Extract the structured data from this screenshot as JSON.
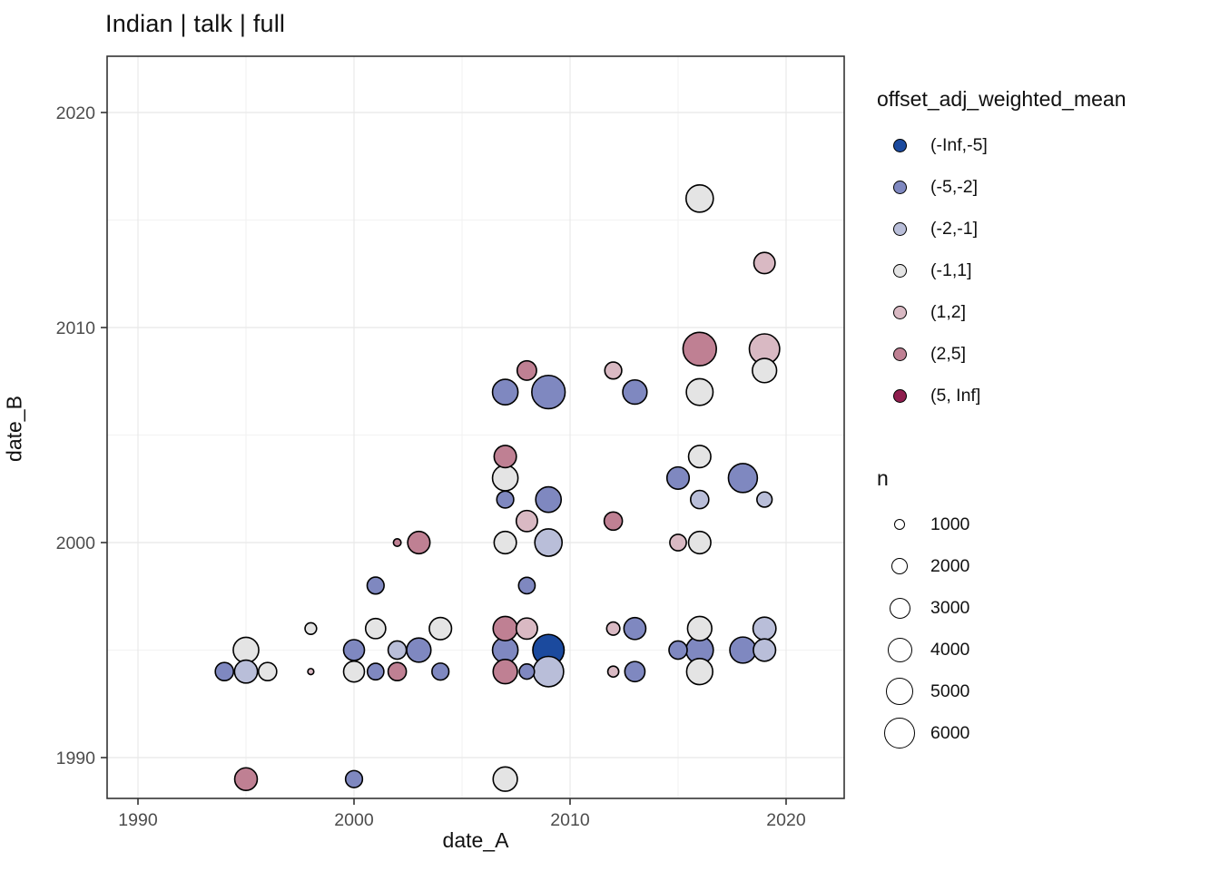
{
  "title": "Indian | talk | full",
  "axes": {
    "x": {
      "label": "date_A",
      "ticks": [
        1990,
        2000,
        2010,
        2020
      ],
      "minor": [
        1995,
        2005,
        2015
      ],
      "range": [
        1988.6,
        2022.7
      ]
    },
    "y": {
      "label": "date_B",
      "ticks": [
        1990,
        2000,
        2010,
        2020
      ],
      "minor": [
        1995,
        2005,
        2015
      ],
      "range": [
        1988.1,
        2022.6
      ]
    }
  },
  "legend_color": {
    "title": "offset_adj_weighted_mean",
    "items": [
      {
        "label": "(-Inf,-5]",
        "color": "#1b4a9e"
      },
      {
        "label": "(-5,-2]",
        "color": "#7f88c0"
      },
      {
        "label": "(-2,-1]",
        "color": "#b9bed9"
      },
      {
        "label": "(-1,1]",
        "color": "#e4e4e4"
      },
      {
        "label": "(1,2]",
        "color": "#d9b9c3"
      },
      {
        "label": "(2,5]",
        "color": "#bf8093"
      },
      {
        "label": "(5, Inf]",
        "color": "#8f1e4e"
      }
    ]
  },
  "legend_size": {
    "title": "n",
    "items": [
      {
        "label": "1000",
        "n": 1000
      },
      {
        "label": "2000",
        "n": 2000
      },
      {
        "label": "3000",
        "n": 3000
      },
      {
        "label": "4000",
        "n": 4000
      },
      {
        "label": "5000",
        "n": 5000
      },
      {
        "label": "6000",
        "n": 6000
      }
    ]
  },
  "chart_data": {
    "type": "scatter",
    "title": "Indian | talk | full",
    "xlabel": "date_A",
    "ylabel": "date_B",
    "xlim": [
      1988.6,
      2022.7
    ],
    "ylim": [
      1988.1,
      2022.6
    ],
    "grid": "on",
    "legend_position": "right",
    "color_variable": "offset_adj_weighted_mean",
    "size_variable": "n",
    "size_scale": {
      "n_ref": [
        1000,
        6000
      ],
      "radius_px_ref": [
        5,
        15.8
      ]
    },
    "points": [
      {
        "date_A": 1994,
        "date_B": 1994,
        "bin": "(-5,-2]",
        "n": 2800
      },
      {
        "date_A": 1995,
        "date_B": 1995,
        "bin": "(-1,1]",
        "n": 4900
      },
      {
        "date_A": 1995,
        "date_B": 1994,
        "bin": "(-2,-1]",
        "n": 4100
      },
      {
        "date_A": 1996,
        "date_B": 1994,
        "bin": "(-1,1]",
        "n": 2800
      },
      {
        "date_A": 1998,
        "date_B": 1996,
        "bin": "(-1,1]",
        "n": 1400
      },
      {
        "date_A": 1998,
        "date_B": 1994,
        "bin": "(1,2]",
        "n": 600
      },
      {
        "date_A": 1995,
        "date_B": 1989,
        "bin": "(2,5]",
        "n": 4000
      },
      {
        "date_A": 2000,
        "date_B": 1989,
        "bin": "(-5,-2]",
        "n": 2500
      },
      {
        "date_A": 2000,
        "date_B": 1995,
        "bin": "(-5,-2]",
        "n": 3500
      },
      {
        "date_A": 2000,
        "date_B": 1994,
        "bin": "(-1,1]",
        "n": 3500
      },
      {
        "date_A": 2001,
        "date_B": 1998,
        "bin": "(-5,-2]",
        "n": 2500
      },
      {
        "date_A": 2001,
        "date_B": 1996,
        "bin": "(-1,1]",
        "n": 3300
      },
      {
        "date_A": 2001,
        "date_B": 1994,
        "bin": "(-5,-2]",
        "n": 2400
      },
      {
        "date_A": 2002,
        "date_B": 2000,
        "bin": "(2,5]",
        "n": 800
      },
      {
        "date_A": 2002,
        "date_B": 1995,
        "bin": "(-2,-1]",
        "n": 2800
      },
      {
        "date_A": 2002,
        "date_B": 1994,
        "bin": "(2,5]",
        "n": 2800
      },
      {
        "date_A": 2003,
        "date_B": 2000,
        "bin": "(2,5]",
        "n": 3900
      },
      {
        "date_A": 2003,
        "date_B": 1995,
        "bin": "(-5,-2]",
        "n": 4500
      },
      {
        "date_A": 2004,
        "date_B": 1996,
        "bin": "(-1,1]",
        "n": 3900
      },
      {
        "date_A": 2004,
        "date_B": 1994,
        "bin": "(-5,-2]",
        "n": 2500
      },
      {
        "date_A": 2007,
        "date_B": 2007,
        "bin": "(-5,-2]",
        "n": 4900
      },
      {
        "date_A": 2008,
        "date_B": 2008,
        "bin": "(2,5]",
        "n": 3100
      },
      {
        "date_A": 2009,
        "date_B": 2007,
        "bin": "(-5,-2]",
        "n": 7800
      },
      {
        "date_A": 2007,
        "date_B": 2004,
        "bin": "(2,5]",
        "n": 3900
      },
      {
        "date_A": 2007,
        "date_B": 2003,
        "bin": "(-1,1]",
        "n": 4900
      },
      {
        "date_A": 2007,
        "date_B": 2002,
        "bin": "(-5,-2]",
        "n": 2500
      },
      {
        "date_A": 2009,
        "date_B": 2002,
        "bin": "(-5,-2]",
        "n": 4900
      },
      {
        "date_A": 2008,
        "date_B": 2001,
        "bin": "(1,2]",
        "n": 3600
      },
      {
        "date_A": 2007,
        "date_B": 2000,
        "bin": "(-1,1]",
        "n": 3900
      },
      {
        "date_A": 2009,
        "date_B": 2000,
        "bin": "(-2,-1]",
        "n": 5500
      },
      {
        "date_A": 2008,
        "date_B": 1998,
        "bin": "(-5,-2]",
        "n": 2400
      },
      {
        "date_A": 2007,
        "date_B": 1996,
        "bin": "(2,5]",
        "n": 4500
      },
      {
        "date_A": 2008,
        "date_B": 1996,
        "bin": "(1,2]",
        "n": 3600
      },
      {
        "date_A": 2007,
        "date_B": 1995,
        "bin": "(-5,-2]",
        "n": 4900
      },
      {
        "date_A": 2009,
        "date_B": 1995,
        "bin": "(-Inf,-5]",
        "n": 7000
      },
      {
        "date_A": 2007,
        "date_B": 1994,
        "bin": "(2,5]",
        "n": 4500
      },
      {
        "date_A": 2008,
        "date_B": 1994,
        "bin": "(-5,-2]",
        "n": 2100
      },
      {
        "date_A": 2009,
        "date_B": 1994,
        "bin": "(-2,-1]",
        "n": 6600
      },
      {
        "date_A": 2007,
        "date_B": 1989,
        "bin": "(-1,1]",
        "n": 4500
      },
      {
        "date_A": 2012,
        "date_B": 2008,
        "bin": "(1,2]",
        "n": 2500
      },
      {
        "date_A": 2013,
        "date_B": 2007,
        "bin": "(-5,-2]",
        "n": 4500
      },
      {
        "date_A": 2012,
        "date_B": 2001,
        "bin": "(2,5]",
        "n": 2800
      },
      {
        "date_A": 2012,
        "date_B": 1996,
        "bin": "(1,2]",
        "n": 1700
      },
      {
        "date_A": 2013,
        "date_B": 1996,
        "bin": "(-5,-2]",
        "n": 3800
      },
      {
        "date_A": 2012,
        "date_B": 1994,
        "bin": "(1,2]",
        "n": 1300
      },
      {
        "date_A": 2013,
        "date_B": 1994,
        "bin": "(-5,-2]",
        "n": 3300
      },
      {
        "date_A": 2016,
        "date_B": 2016,
        "bin": "(-1,1]",
        "n": 5500
      },
      {
        "date_A": 2019,
        "date_B": 2013,
        "bin": "(1,2]",
        "n": 3600
      },
      {
        "date_A": 2016,
        "date_B": 2009,
        "bin": "(2,5]",
        "n": 7800
      },
      {
        "date_A": 2019,
        "date_B": 2009,
        "bin": "(1,2]",
        "n": 6600
      },
      {
        "date_A": 2019,
        "date_B": 2008,
        "bin": "(-1,1]",
        "n": 4500
      },
      {
        "date_A": 2016,
        "date_B": 2007,
        "bin": "(-1,1]",
        "n": 5300
      },
      {
        "date_A": 2016,
        "date_B": 2004,
        "bin": "(-1,1]",
        "n": 3900
      },
      {
        "date_A": 2015,
        "date_B": 2003,
        "bin": "(-5,-2]",
        "n": 3900
      },
      {
        "date_A": 2018,
        "date_B": 2003,
        "bin": "(-5,-2]",
        "n": 6100
      },
      {
        "date_A": 2016,
        "date_B": 2002,
        "bin": "(-2,-1]",
        "n": 2800
      },
      {
        "date_A": 2019,
        "date_B": 2002,
        "bin": "(-2,-1]",
        "n": 2100
      },
      {
        "date_A": 2015,
        "date_B": 2000,
        "bin": "(1,2]",
        "n": 2400
      },
      {
        "date_A": 2016,
        "date_B": 2000,
        "bin": "(-1,1]",
        "n": 3900
      },
      {
        "date_A": 2015,
        "date_B": 1995,
        "bin": "(-5,-2]",
        "n": 2800
      },
      {
        "date_A": 2016,
        "date_B": 1996,
        "bin": "(-1,1]",
        "n": 4500
      },
      {
        "date_A": 2016,
        "date_B": 1995,
        "bin": "(-5,-2]",
        "n": 5500
      },
      {
        "date_A": 2016,
        "date_B": 1994,
        "bin": "(-1,1]",
        "n": 5100
      },
      {
        "date_A": 2018,
        "date_B": 1995,
        "bin": "(-5,-2]",
        "n": 5100
      },
      {
        "date_A": 2019,
        "date_B": 1996,
        "bin": "(-2,-1]",
        "n": 4100
      },
      {
        "date_A": 2019,
        "date_B": 1995,
        "bin": "(-2,-1]",
        "n": 3900
      }
    ]
  }
}
